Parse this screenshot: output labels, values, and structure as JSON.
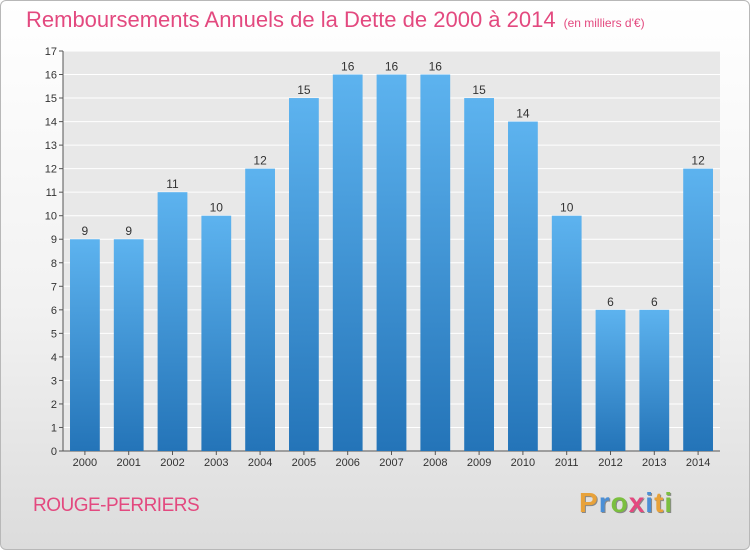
{
  "chart_data": {
    "type": "bar",
    "title": "Remboursements Annuels de la Dette de 2000 à 2014",
    "subtitle": "(en milliers d'€)",
    "categories": [
      "2000",
      "2001",
      "2002",
      "2003",
      "2004",
      "2005",
      "2006",
      "2007",
      "2008",
      "2009",
      "2010",
      "2011",
      "2012",
      "2013",
      "2014"
    ],
    "values": [
      9,
      9,
      11,
      10,
      12,
      15,
      16,
      16,
      16,
      15,
      14,
      10,
      6,
      6,
      12
    ],
    "ylim": [
      0,
      17
    ],
    "yticks": [
      0,
      1,
      2,
      3,
      4,
      5,
      6,
      7,
      8,
      9,
      10,
      11,
      12,
      13,
      14,
      15,
      16,
      17
    ],
    "grid": true,
    "bar_color": "#4aa3e6"
  },
  "footer": {
    "commune": "ROUGE-PERRIERS",
    "brand_letters": [
      "P",
      "r",
      "o",
      "x",
      "i",
      "t",
      "i"
    ],
    "brand_colors": [
      "#e8a23a",
      "#4b8fd6",
      "#7bbf3f",
      "#e3497f",
      "#4b8fd6",
      "#e8a23a",
      "#7bbf3f"
    ]
  }
}
